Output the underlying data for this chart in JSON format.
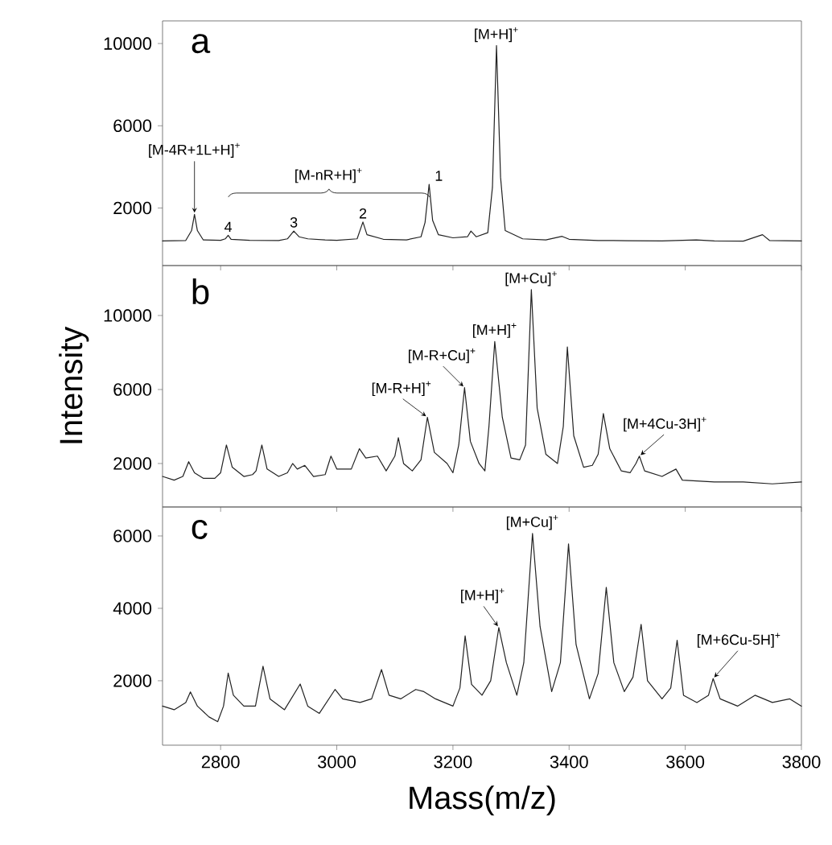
{
  "chart_data": [
    {
      "type": "line",
      "title": "a",
      "color": "#222222",
      "xlim": [
        2700,
        3800
      ],
      "ylim": [
        -800,
        11100
      ],
      "xticks": [
        2800,
        3000,
        3200,
        3400,
        3600,
        3800
      ],
      "yticks": [
        2000,
        6000,
        10000
      ],
      "tick_labels": "y",
      "x": [
        2700,
        2740,
        2750,
        2755,
        2760,
        2770,
        2800,
        2808,
        2813,
        2818,
        2850,
        2900,
        2915,
        2926,
        2935,
        2950,
        2980,
        3000,
        3035,
        3045,
        3052,
        3080,
        3120,
        3145,
        3152,
        3159,
        3165,
        3175,
        3200,
        3225,
        3231,
        3240,
        3260,
        3268,
        3275,
        3282,
        3290,
        3320,
        3360,
        3388,
        3400,
        3450,
        3500,
        3560,
        3619,
        3650,
        3700,
        3733,
        3745,
        3800
      ],
      "values": [
        400,
        420,
        900,
        1690,
        900,
        450,
        430,
        500,
        670,
        480,
        430,
        420,
        500,
        880,
        600,
        500,
        450,
        430,
        500,
        1320,
        700,
        480,
        450,
        600,
        1300,
        3150,
        1400,
        700,
        550,
        600,
        880,
        600,
        800,
        3000,
        9900,
        3500,
        900,
        500,
        450,
        620,
        480,
        420,
        410,
        400,
        450,
        400,
        390,
        700,
        420,
        400
      ],
      "annotations": [
        {
          "text": "[M+H]$^{+}$",
          "x": 3275,
          "y": 9900
        },
        {
          "text": "[M-4R+1L+H]$^{+}$",
          "x": 2755,
          "y": 1690
        },
        "[M-nR+H]$^{+}$",
        {
          "text": "1",
          "x": 3159,
          "y": 3150
        },
        {
          "text": "2",
          "x": 3045,
          "y": 1320
        },
        {
          "text": "3",
          "x": 2926,
          "y": 880
        },
        {
          "text": "4",
          "x": 2813,
          "y": 670
        }
      ]
    },
    {
      "type": "line",
      "title": "b",
      "ylabel": "Intensity",
      "color": "#222222",
      "xlim": [
        2700,
        3800
      ],
      "ylim": [
        -350,
        12700
      ],
      "xticks": [
        2800,
        3000,
        3200,
        3400,
        3600,
        3800
      ],
      "yticks": [
        2000,
        6000,
        10000
      ],
      "tick_labels": "y",
      "x": [
        2700,
        2720,
        2735,
        2745,
        2755,
        2770,
        2790,
        2800,
        2810,
        2820,
        2840,
        2855,
        2861,
        2871,
        2880,
        2900,
        2915,
        2924,
        2932,
        2945,
        2960,
        2980,
        2990,
        3000,
        3025,
        3039,
        3050,
        3070,
        3085,
        3100,
        3106,
        3115,
        3130,
        3145,
        3156,
        3168,
        3190,
        3200,
        3210,
        3220,
        3230,
        3245,
        3255,
        3262,
        3272,
        3285,
        3300,
        3315,
        3325,
        3335,
        3345,
        3360,
        3380,
        3390,
        3397,
        3408,
        3425,
        3440,
        3450,
        3459,
        3470,
        3490,
        3505,
        3515,
        3521,
        3530,
        3560,
        3584,
        3595,
        3650,
        3700,
        3750,
        3800
      ],
      "values": [
        1300,
        1100,
        1300,
        2100,
        1500,
        1200,
        1200,
        1500,
        3000,
        1800,
        1300,
        1400,
        1600,
        3000,
        1700,
        1300,
        1500,
        2000,
        1700,
        1900,
        1300,
        1400,
        2400,
        1700,
        1700,
        2800,
        2300,
        2400,
        1600,
        2400,
        3400,
        2000,
        1600,
        2200,
        4500,
        2600,
        2000,
        1500,
        3000,
        6100,
        3200,
        2000,
        1600,
        4000,
        8600,
        4500,
        2300,
        2200,
        3000,
        11400,
        5000,
        2500,
        2000,
        4000,
        8300,
        3500,
        1800,
        1900,
        2500,
        4700,
        2800,
        1600,
        1500,
        2000,
        2400,
        1600,
        1300,
        1700,
        1100,
        1000,
        1000,
        900,
        1000
      ],
      "annotations": [
        {
          "text": "[M+Cu]$^{+}$",
          "x": 3335,
          "y": 11400
        },
        {
          "text": "[M+H]$^{+}$",
          "x": 3272,
          "y": 8600
        },
        {
          "text": "[M-R+Cu]$^{+}$",
          "x": 3220,
          "y": 6100
        },
        {
          "text": "[M-R+H]$^{+}$",
          "x": 3156,
          "y": 4500
        },
        {
          "text": "[M+4Cu-3H]$^{+}$",
          "x": 3521,
          "y": 2400
        }
      ]
    },
    {
      "type": "line",
      "title": "c",
      "xlabel": "Mass(m/z)",
      "color": "#222222",
      "xlim": [
        2700,
        3800
      ],
      "ylim": [
        220,
        6800
      ],
      "xticks": [
        2800,
        3000,
        3200,
        3400,
        3600,
        3800
      ],
      "yticks": [
        2000,
        4000,
        6000
      ],
      "x": [
        2700,
        2720,
        2740,
        2748,
        2760,
        2780,
        2795,
        2805,
        2813,
        2822,
        2840,
        2860,
        2873,
        2885,
        2910,
        2937,
        2950,
        2970,
        2997,
        3010,
        3040,
        3060,
        3077,
        3090,
        3110,
        3136,
        3150,
        3170,
        3200,
        3212,
        3221,
        3232,
        3250,
        3265,
        3279,
        3292,
        3310,
        3322,
        3337,
        3350,
        3370,
        3385,
        3399,
        3412,
        3435,
        3450,
        3464,
        3477,
        3495,
        3510,
        3524,
        3535,
        3560,
        3575,
        3586,
        3597,
        3620,
        3640,
        3648,
        3660,
        3690,
        3720,
        3750,
        3780,
        3800
      ],
      "values": [
        1300,
        1200,
        1400,
        1690,
        1300,
        1000,
        870,
        1300,
        2210,
        1600,
        1300,
        1300,
        2400,
        1500,
        1200,
        1910,
        1300,
        1100,
        1760,
        1500,
        1400,
        1500,
        2310,
        1600,
        1500,
        1760,
        1700,
        1500,
        1300,
        1800,
        3240,
        1900,
        1600,
        2000,
        3470,
        2500,
        1600,
        2500,
        6070,
        3500,
        1700,
        2500,
        5780,
        3000,
        1500,
        2200,
        4580,
        2500,
        1700,
        2100,
        3560,
        2000,
        1500,
        1800,
        3120,
        1600,
        1400,
        1600,
        2060,
        1500,
        1300,
        1600,
        1400,
        1500,
        1300
      ],
      "annotations": [
        {
          "text": "[M+Cu]$^{+}$",
          "x": 3337,
          "y": 6070
        },
        {
          "text": "[M+H]$^{+}$",
          "x": 3279,
          "y": 3470
        },
        {
          "text": "[M+6Cu-5H]$^{+}$",
          "x": 3648,
          "y": 2060
        }
      ]
    }
  ]
}
